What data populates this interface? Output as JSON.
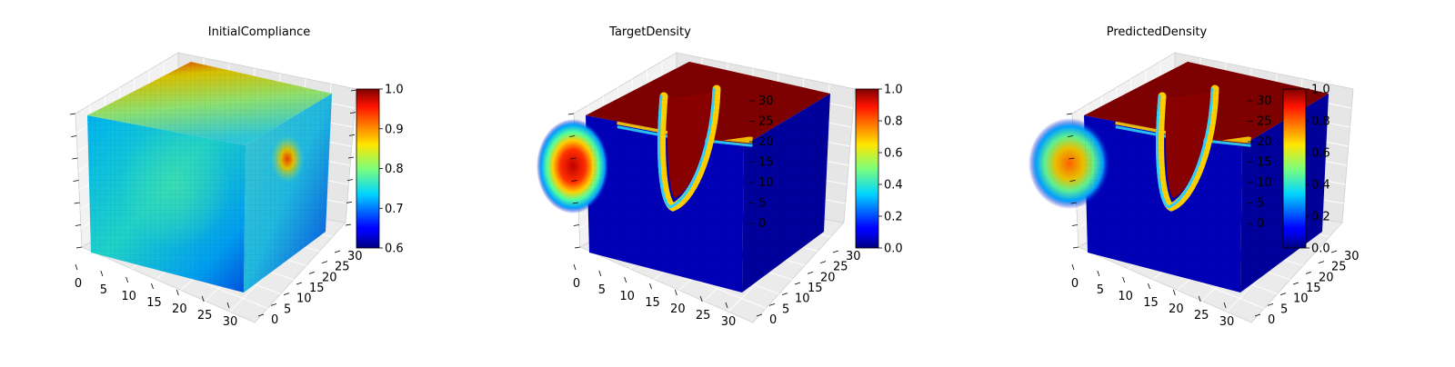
{
  "chart_data": [
    {
      "type": "heatmap",
      "subtype": "3d-voxel-cube",
      "title": "InitialCompliance",
      "xlabel": "",
      "ylabel": "",
      "zlabel": "",
      "x_ticks": [
        "0",
        "5",
        "10",
        "15",
        "20",
        "25",
        "30"
      ],
      "y_ticks": [
        "0",
        "5",
        "10",
        "15",
        "20",
        "25",
        "30"
      ],
      "z_ticks": [],
      "xlim": [
        0,
        32
      ],
      "ylim": [
        0,
        32
      ],
      "zlim": [
        0,
        32
      ],
      "colormap": "jet",
      "colorbar": {
        "min": 0.6,
        "max": 1.0,
        "ticks": [
          "0.6",
          "0.7",
          "0.8",
          "0.9",
          "1.0"
        ]
      },
      "grid": true
    },
    {
      "type": "heatmap",
      "subtype": "3d-voxel-cube",
      "title": "TargetDensity",
      "xlabel": "",
      "ylabel": "",
      "zlabel": "",
      "x_ticks": [
        "0",
        "5",
        "10",
        "15",
        "20",
        "25",
        "30"
      ],
      "y_ticks": [
        "0",
        "5",
        "10",
        "15",
        "20",
        "25",
        "30"
      ],
      "z_ticks": [
        "0",
        "5",
        "10",
        "15",
        "20",
        "25",
        "30"
      ],
      "xlim": [
        0,
        32
      ],
      "ylim": [
        0,
        32
      ],
      "zlim": [
        0,
        32
      ],
      "colormap": "jet",
      "colorbar": {
        "min": 0.0,
        "max": 1.0,
        "ticks": [
          "0.0",
          "0.2",
          "0.4",
          "0.6",
          "0.8",
          "1.0"
        ]
      },
      "grid": true
    },
    {
      "type": "heatmap",
      "subtype": "3d-voxel-cube",
      "title": "PredictedDensity",
      "xlabel": "",
      "ylabel": "",
      "zlabel": "",
      "x_ticks": [
        "0",
        "5",
        "10",
        "15",
        "20",
        "25",
        "30"
      ],
      "y_ticks": [
        "0",
        "5",
        "10",
        "15",
        "20",
        "25",
        "30"
      ],
      "z_ticks": [
        "0",
        "5",
        "10",
        "15",
        "20",
        "25",
        "30"
      ],
      "xlim": [
        0,
        32
      ],
      "ylim": [
        0,
        32
      ],
      "zlim": [
        0,
        32
      ],
      "colormap": "jet",
      "colorbar": {
        "min": 0.0,
        "max": 1.0,
        "ticks": [
          "0.0",
          "0.2",
          "0.4",
          "0.6",
          "0.8",
          "1.0"
        ]
      },
      "grid": true
    }
  ]
}
